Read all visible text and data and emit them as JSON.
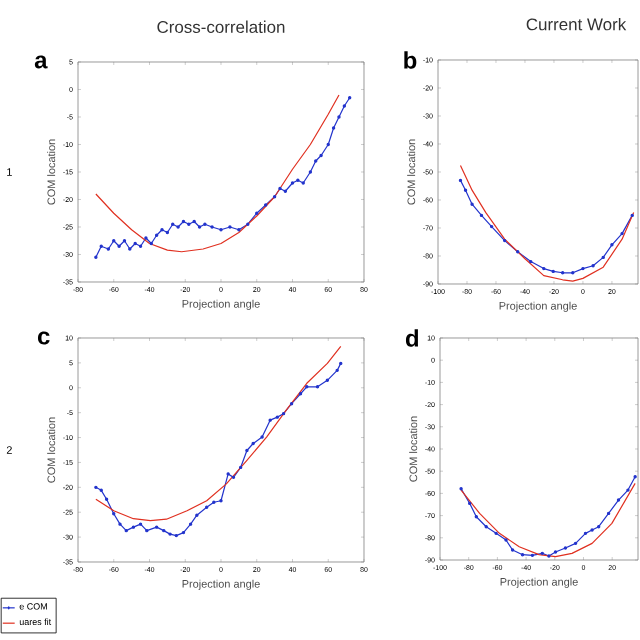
{
  "chart_data": [
    {
      "type": "line",
      "title": "Cross-correlation",
      "xlabel": "Projection angle",
      "ylabel": "COM location",
      "annotations": [
        "a",
        "1"
      ],
      "xlim": [
        -80,
        80
      ],
      "xticks": [
        -80,
        -60,
        -40,
        -20,
        0,
        20,
        40,
        60,
        80
      ],
      "ylim": [
        -35,
        5
      ],
      "yticks": [
        -35,
        -30,
        -25,
        -20,
        -15,
        -10,
        -5,
        0,
        5
      ],
      "series": [
        {
          "color": "#2233cc",
          "marker": "circle",
          "x": [
            -70,
            -67,
            -63,
            -60,
            -57,
            -54,
            -51,
            -48,
            -45,
            -42,
            -39,
            -36,
            -33,
            -30,
            -27,
            -24,
            -21,
            -18,
            -15,
            -12,
            -9,
            -5,
            0,
            5,
            10,
            15,
            20,
            25,
            30,
            33,
            36,
            40,
            43,
            46,
            50,
            53,
            56,
            60,
            63,
            66,
            69,
            72
          ],
          "values": [
            -30.5,
            -28.5,
            -29,
            -27.5,
            -28.5,
            -27.5,
            -29,
            -28,
            -28.5,
            -27,
            -28,
            -26.5,
            -25.5,
            -26,
            -24.5,
            -25,
            -24,
            -24.5,
            -24,
            -25,
            -24.5,
            -25,
            -25.5,
            -25,
            -25.5,
            -24.5,
            -22.5,
            -21,
            -19.5,
            -18,
            -18.5,
            -17,
            -16.5,
            -17,
            -15,
            -13,
            -12,
            -10,
            -7,
            -5,
            -3,
            -1.5
          ]
        },
        {
          "color": "#e03020",
          "marker": "none",
          "x": [
            -70,
            -60,
            -50,
            -40,
            -30,
            -22,
            -10,
            0,
            10,
            20,
            30,
            40,
            50,
            60,
            66
          ],
          "values": [
            -19,
            -22.5,
            -25.5,
            -28,
            -29.2,
            -29.5,
            -29,
            -28,
            -26,
            -23,
            -19.5,
            -14.5,
            -10,
            -4.5,
            -1
          ]
        }
      ]
    },
    {
      "type": "line",
      "title": "Current Work",
      "xlabel": "Projection angle",
      "ylabel": "COM location",
      "annotations": [
        "b"
      ],
      "xlim": [
        -100,
        38
      ],
      "xticks": [
        -100,
        -80,
        -60,
        -40,
        -20,
        0,
        20
      ],
      "ylim": [
        -90,
        -10
      ],
      "yticks": [
        -90,
        -80,
        -70,
        -60,
        -50,
        -40,
        -30,
        -20,
        -10
      ],
      "series": [
        {
          "color": "#2233cc",
          "marker": "circle",
          "x": [
            -84.5,
            -81,
            -76.5,
            -70,
            -63,
            -54,
            -45,
            -36,
            -27,
            -20.5,
            -14,
            -7,
            0,
            7,
            14,
            20,
            27,
            34
          ],
          "values": [
            -53,
            -56.5,
            -61.5,
            -65.5,
            -69.5,
            -74.5,
            -78.5,
            -82,
            -84.5,
            -85.5,
            -86,
            -86,
            -84.5,
            -83.5,
            -80.5,
            -76,
            -72,
            -65.5
          ]
        },
        {
          "color": "#e03020",
          "marker": "none",
          "x": [
            -84.5,
            -76.5,
            -67,
            -54,
            -40,
            -27,
            -14,
            -7,
            0,
            14,
            27,
            35
          ],
          "values": [
            -47.7,
            -56.5,
            -64.5,
            -74,
            -81,
            -87,
            -88.5,
            -89,
            -88,
            -84,
            -74,
            -64.5
          ]
        }
      ]
    },
    {
      "type": "line",
      "xlabel": "Projection angle",
      "ylabel": "COM location",
      "annotations": [
        "c",
        "2"
      ],
      "legend": "bottom left",
      "xlim": [
        -80,
        80
      ],
      "xticks": [
        -80,
        -60,
        -40,
        -20,
        0,
        20,
        40,
        60,
        80
      ],
      "ylim": [
        -35,
        10
      ],
      "yticks": [
        -35,
        -30,
        -25,
        -20,
        -15,
        -10,
        -5,
        0,
        5,
        10
      ],
      "series": [
        {
          "name": "e COM",
          "color": "#2233cc",
          "marker": "circle",
          "x": [
            -70,
            -67,
            -64,
            -60,
            -56.5,
            -53,
            -49,
            -45,
            -41.5,
            -36,
            -32,
            -28.5,
            -25,
            -21,
            -17,
            -13.5,
            -8,
            -4,
            0,
            4,
            7,
            11,
            14.5,
            18,
            23,
            27.5,
            31.5,
            35,
            39.5,
            44.5,
            48,
            54,
            59.5,
            65,
            67
          ],
          "values": [
            -20,
            -20.6,
            -22.4,
            -25.3,
            -27.4,
            -28.7,
            -28,
            -27.4,
            -28.7,
            -28,
            -28.7,
            -29.4,
            -29.7,
            -29.1,
            -27.4,
            -25.6,
            -24,
            -23,
            -22.7,
            -17.3,
            -18,
            -16,
            -12.6,
            -11.2,
            -9.9,
            -6.5,
            -5.9,
            -5.2,
            -3.2,
            -1.2,
            0.2,
            0.2,
            1.5,
            3.5,
            4.9
          ]
        },
        {
          "name": "uares fit",
          "color": "#e03020",
          "marker": "none",
          "x": [
            -70,
            -60,
            -49,
            -39.5,
            -30.5,
            -19,
            -8,
            3,
            14.5,
            25.5,
            36.5,
            48,
            59.5,
            67
          ],
          "values": [
            -22.4,
            -24.7,
            -26.3,
            -26.7,
            -26.4,
            -24.7,
            -22.7,
            -19.3,
            -14.6,
            -9.9,
            -4.5,
            0.9,
            4.9,
            8.3
          ]
        }
      ]
    },
    {
      "type": "line",
      "xlabel": "Projection angle",
      "ylabel": "COM location",
      "annotations": [
        "d"
      ],
      "xlim": [
        -100,
        38
      ],
      "xticks": [
        -100,
        -80,
        -60,
        -40,
        -20,
        0,
        20
      ],
      "ylim": [
        -90,
        10
      ],
      "yticks": [
        -90,
        -80,
        -70,
        -60,
        -50,
        -40,
        -30,
        -20,
        -10,
        0,
        10
      ],
      "series": [
        {
          "color": "#2233cc",
          "marker": "circle",
          "x": [
            -85.3,
            -79.3,
            -74.7,
            -67.8,
            -60.9,
            -54,
            -49.4,
            -42.5,
            -35.6,
            -28.7,
            -24.1,
            -19.5,
            -12.6,
            -5.5,
            1.4,
            6,
            10.6,
            17.5,
            24.4,
            31,
            36
          ],
          "values": [
            -57.9,
            -64.5,
            -70.5,
            -75,
            -78,
            -81,
            -85.5,
            -87.6,
            -87.9,
            -87,
            -88.2,
            -86.4,
            -84.6,
            -82.5,
            -78,
            -76.5,
            -75,
            -69,
            -63,
            -58.5,
            -52.5
          ]
        },
        {
          "color": "#e03020",
          "marker": "none",
          "x": [
            -85.3,
            -72.4,
            -58.6,
            -44.8,
            -31,
            -19.5,
            -8,
            6,
            19.8,
            36
          ],
          "values": [
            -58.5,
            -69,
            -78,
            -84,
            -87.6,
            -88.5,
            -87,
            -82.5,
            -73.5,
            -55.5
          ]
        }
      ]
    }
  ]
}
